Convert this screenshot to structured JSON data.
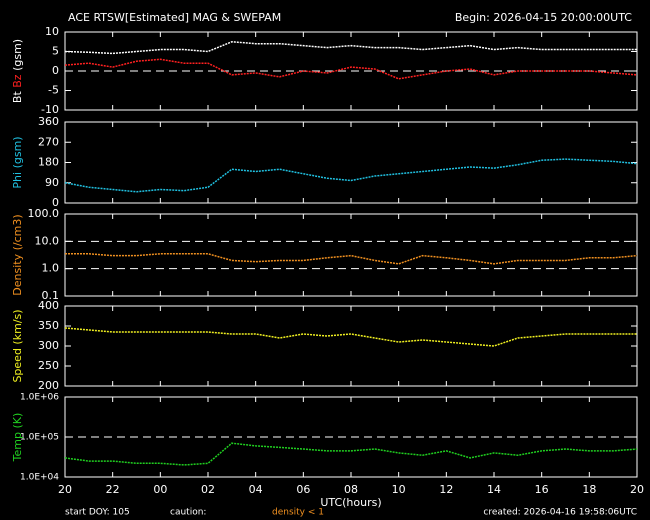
{
  "chart_data": [
    {
      "type": "line",
      "title": "ACE RTSW[Estimated] MAG & SWEPAM",
      "subtitle": "Begin: 2026-04-15 20:00:00UTC",
      "ylabel": "(gsm)",
      "xlim": [
        0,
        24
      ],
      "ylim": [
        -10,
        10
      ],
      "yticks": [
        -10,
        -5,
        0,
        5,
        10
      ],
      "hlines": [
        0
      ],
      "x": [
        0,
        1,
        2,
        3,
        4,
        5,
        6,
        7,
        8,
        9,
        10,
        11,
        12,
        13,
        14,
        15,
        16,
        17,
        18,
        19,
        20,
        21,
        22,
        23,
        24
      ],
      "series": [
        {
          "name": "Bt",
          "color": "#ffffff",
          "values": [
            5,
            4.8,
            4.5,
            5,
            5.5,
            5.5,
            5,
            7.5,
            7,
            7,
            6.5,
            6,
            6.5,
            6,
            6,
            5.5,
            6,
            6.5,
            5.5,
            6,
            5.5,
            5.5,
            5.5,
            5.5,
            5.5
          ]
        },
        {
          "name": "Bz",
          "color": "#ff2020",
          "values": [
            1.5,
            2,
            1,
            2.5,
            3,
            2,
            2,
            -1,
            -0.5,
            -1.5,
            0,
            -0.5,
            1,
            0.5,
            -2,
            -1,
            0,
            0.5,
            -1,
            0,
            0,
            0,
            0,
            -0.5,
            -1
          ]
        }
      ]
    },
    {
      "type": "line",
      "ylabel": "(gsm)",
      "xlim": [
        0,
        24
      ],
      "ylim": [
        0,
        360
      ],
      "yticks": [
        0,
        90,
        180,
        270,
        360
      ],
      "x": [
        0,
        1,
        2,
        3,
        4,
        5,
        6,
        7,
        8,
        9,
        10,
        11,
        12,
        13,
        14,
        15,
        16,
        17,
        18,
        19,
        20,
        21,
        22,
        23,
        24
      ],
      "series": [
        {
          "name": "Phi",
          "color": "#20c0e0",
          "values": [
            90,
            70,
            60,
            50,
            60,
            55,
            70,
            150,
            140,
            150,
            130,
            110,
            100,
            120,
            130,
            140,
            150,
            160,
            155,
            170,
            190,
            195,
            190,
            185,
            175
          ]
        }
      ]
    },
    {
      "type": "line",
      "ylabel": "(/cm3)",
      "log": true,
      "xlim": [
        0,
        24
      ],
      "ylim": [
        0.1,
        100
      ],
      "yticks": [
        0.1,
        {
          "value": 1,
          "label": "1.0"
        },
        {
          "value": 10,
          "label": "10.0"
        },
        {
          "value": 100,
          "label": "100.0"
        }
      ],
      "hlines": [
        1,
        10
      ],
      "x": [
        0,
        1,
        2,
        3,
        4,
        5,
        6,
        7,
        8,
        9,
        10,
        11,
        12,
        13,
        14,
        15,
        16,
        17,
        18,
        19,
        20,
        21,
        22,
        23,
        24
      ],
      "series": [
        {
          "name": "Density",
          "color": "#f09020",
          "values": [
            3.5,
            3.5,
            3,
            3,
            3.5,
            3.5,
            3.5,
            2,
            1.8,
            2,
            2,
            2.5,
            3,
            2,
            1.5,
            3,
            2.5,
            2,
            1.5,
            2,
            2,
            2,
            2.5,
            2.5,
            3
          ]
        }
      ]
    },
    {
      "type": "line",
      "ylabel": "(km/s)",
      "xlim": [
        0,
        24
      ],
      "ylim": [
        200,
        400
      ],
      "yticks": [
        200,
        250,
        300,
        350,
        400
      ],
      "x": [
        0,
        1,
        2,
        3,
        4,
        5,
        6,
        7,
        8,
        9,
        10,
        11,
        12,
        13,
        14,
        15,
        16,
        17,
        18,
        19,
        20,
        21,
        22,
        23,
        24
      ],
      "series": [
        {
          "name": "Speed",
          "color": "#f0f020",
          "values": [
            345,
            340,
            335,
            335,
            335,
            335,
            335,
            330,
            330,
            320,
            330,
            325,
            330,
            320,
            310,
            315,
            310,
            305,
            300,
            320,
            325,
            330,
            330,
            330,
            330
          ]
        }
      ]
    },
    {
      "type": "line",
      "ylabel": "(K)",
      "log": true,
      "xlim": [
        0,
        24
      ],
      "ylim": [
        10000,
        1000000
      ],
      "yticks": [
        {
          "value": 10000,
          "label": "1.0E+04"
        },
        {
          "value": 100000,
          "label": "1.0E+05"
        },
        {
          "value": 1000000,
          "label": "1.0E+06"
        }
      ],
      "hlines": [
        100000
      ],
      "xlabel": "UTC(hours)",
      "xticks": [
        {
          "value": 0,
          "label": "20"
        },
        {
          "value": 2,
          "label": "22"
        },
        {
          "value": 4,
          "label": "00"
        },
        {
          "value": 6,
          "label": "02"
        },
        {
          "value": 8,
          "label": "04"
        },
        {
          "value": 10,
          "label": "06"
        },
        {
          "value": 12,
          "label": "08"
        },
        {
          "value": 14,
          "label": "10"
        },
        {
          "value": 16,
          "label": "12"
        },
        {
          "value": 18,
          "label": "14"
        },
        {
          "value": 20,
          "label": "16"
        },
        {
          "value": 22,
          "label": "18"
        },
        {
          "value": 24,
          "label": "20"
        }
      ],
      "x": [
        0,
        1,
        2,
        3,
        4,
        5,
        6,
        7,
        8,
        9,
        10,
        11,
        12,
        13,
        14,
        15,
        16,
        17,
        18,
        19,
        20,
        21,
        22,
        23,
        24
      ],
      "series": [
        {
          "name": "Temp",
          "color": "#20d020",
          "values": [
            30000,
            25000,
            25000,
            22000,
            22000,
            20000,
            22000,
            70000,
            60000,
            55000,
            50000,
            45000,
            45000,
            50000,
            40000,
            35000,
            45000,
            30000,
            40000,
            35000,
            45000,
            50000,
            45000,
            45000,
            50000
          ]
        }
      ]
    }
  ],
  "footer": {
    "start": "start DOY: 105",
    "caution": "caution:",
    "caution_note": "density < 1",
    "caution_color": "#f09020",
    "created": "created: 2026-04-16 19:58:06UTC"
  }
}
